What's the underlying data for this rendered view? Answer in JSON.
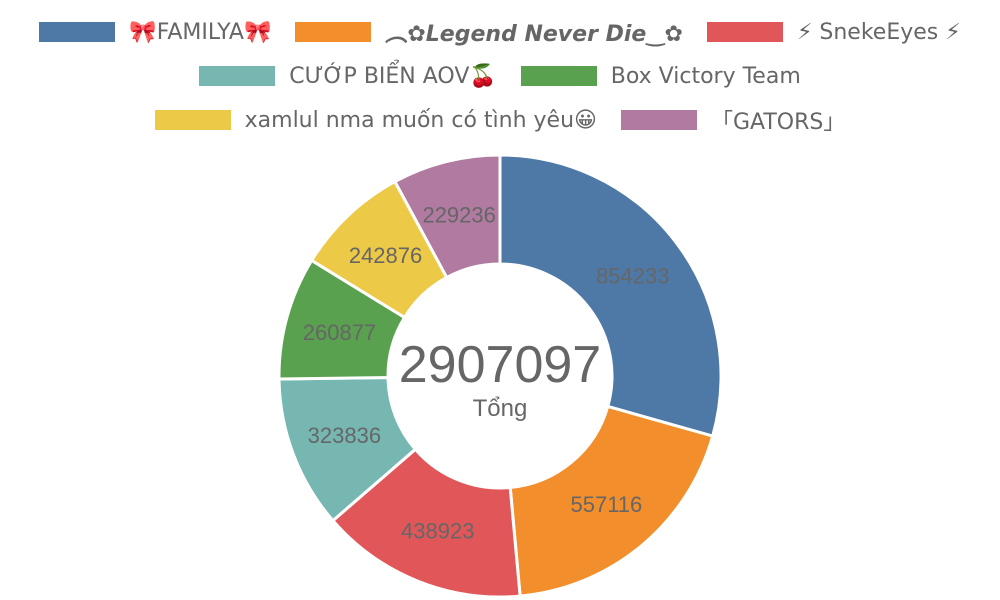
{
  "chart_data": {
    "type": "pie",
    "variant": "doughnut",
    "categories": [
      "🎀FAMILYA🎀",
      "︵✿Legend Never Die‿✿",
      "⚡ SnekeEyes ⚡",
      "CƯỚP BIỂN AOV🍒",
      "Box Victory Team",
      "xamlul nma muốn có tình yêu😀",
      "「GATORS」"
    ],
    "values": [
      854233,
      557116,
      438923,
      323836,
      260877,
      242876,
      229236
    ],
    "colors": [
      "#4e79a7",
      "#f28e2b",
      "#e15759",
      "#76b7b2",
      "#59a14f",
      "#edc948",
      "#b07aa1"
    ],
    "value_labels": [
      "854233",
      "557116",
      "438923",
      "323836",
      "260877",
      "242876",
      "229236"
    ],
    "center_total": "2907097",
    "center_caption": "Tổng",
    "legend_position": "top",
    "label_color": "#666666"
  }
}
